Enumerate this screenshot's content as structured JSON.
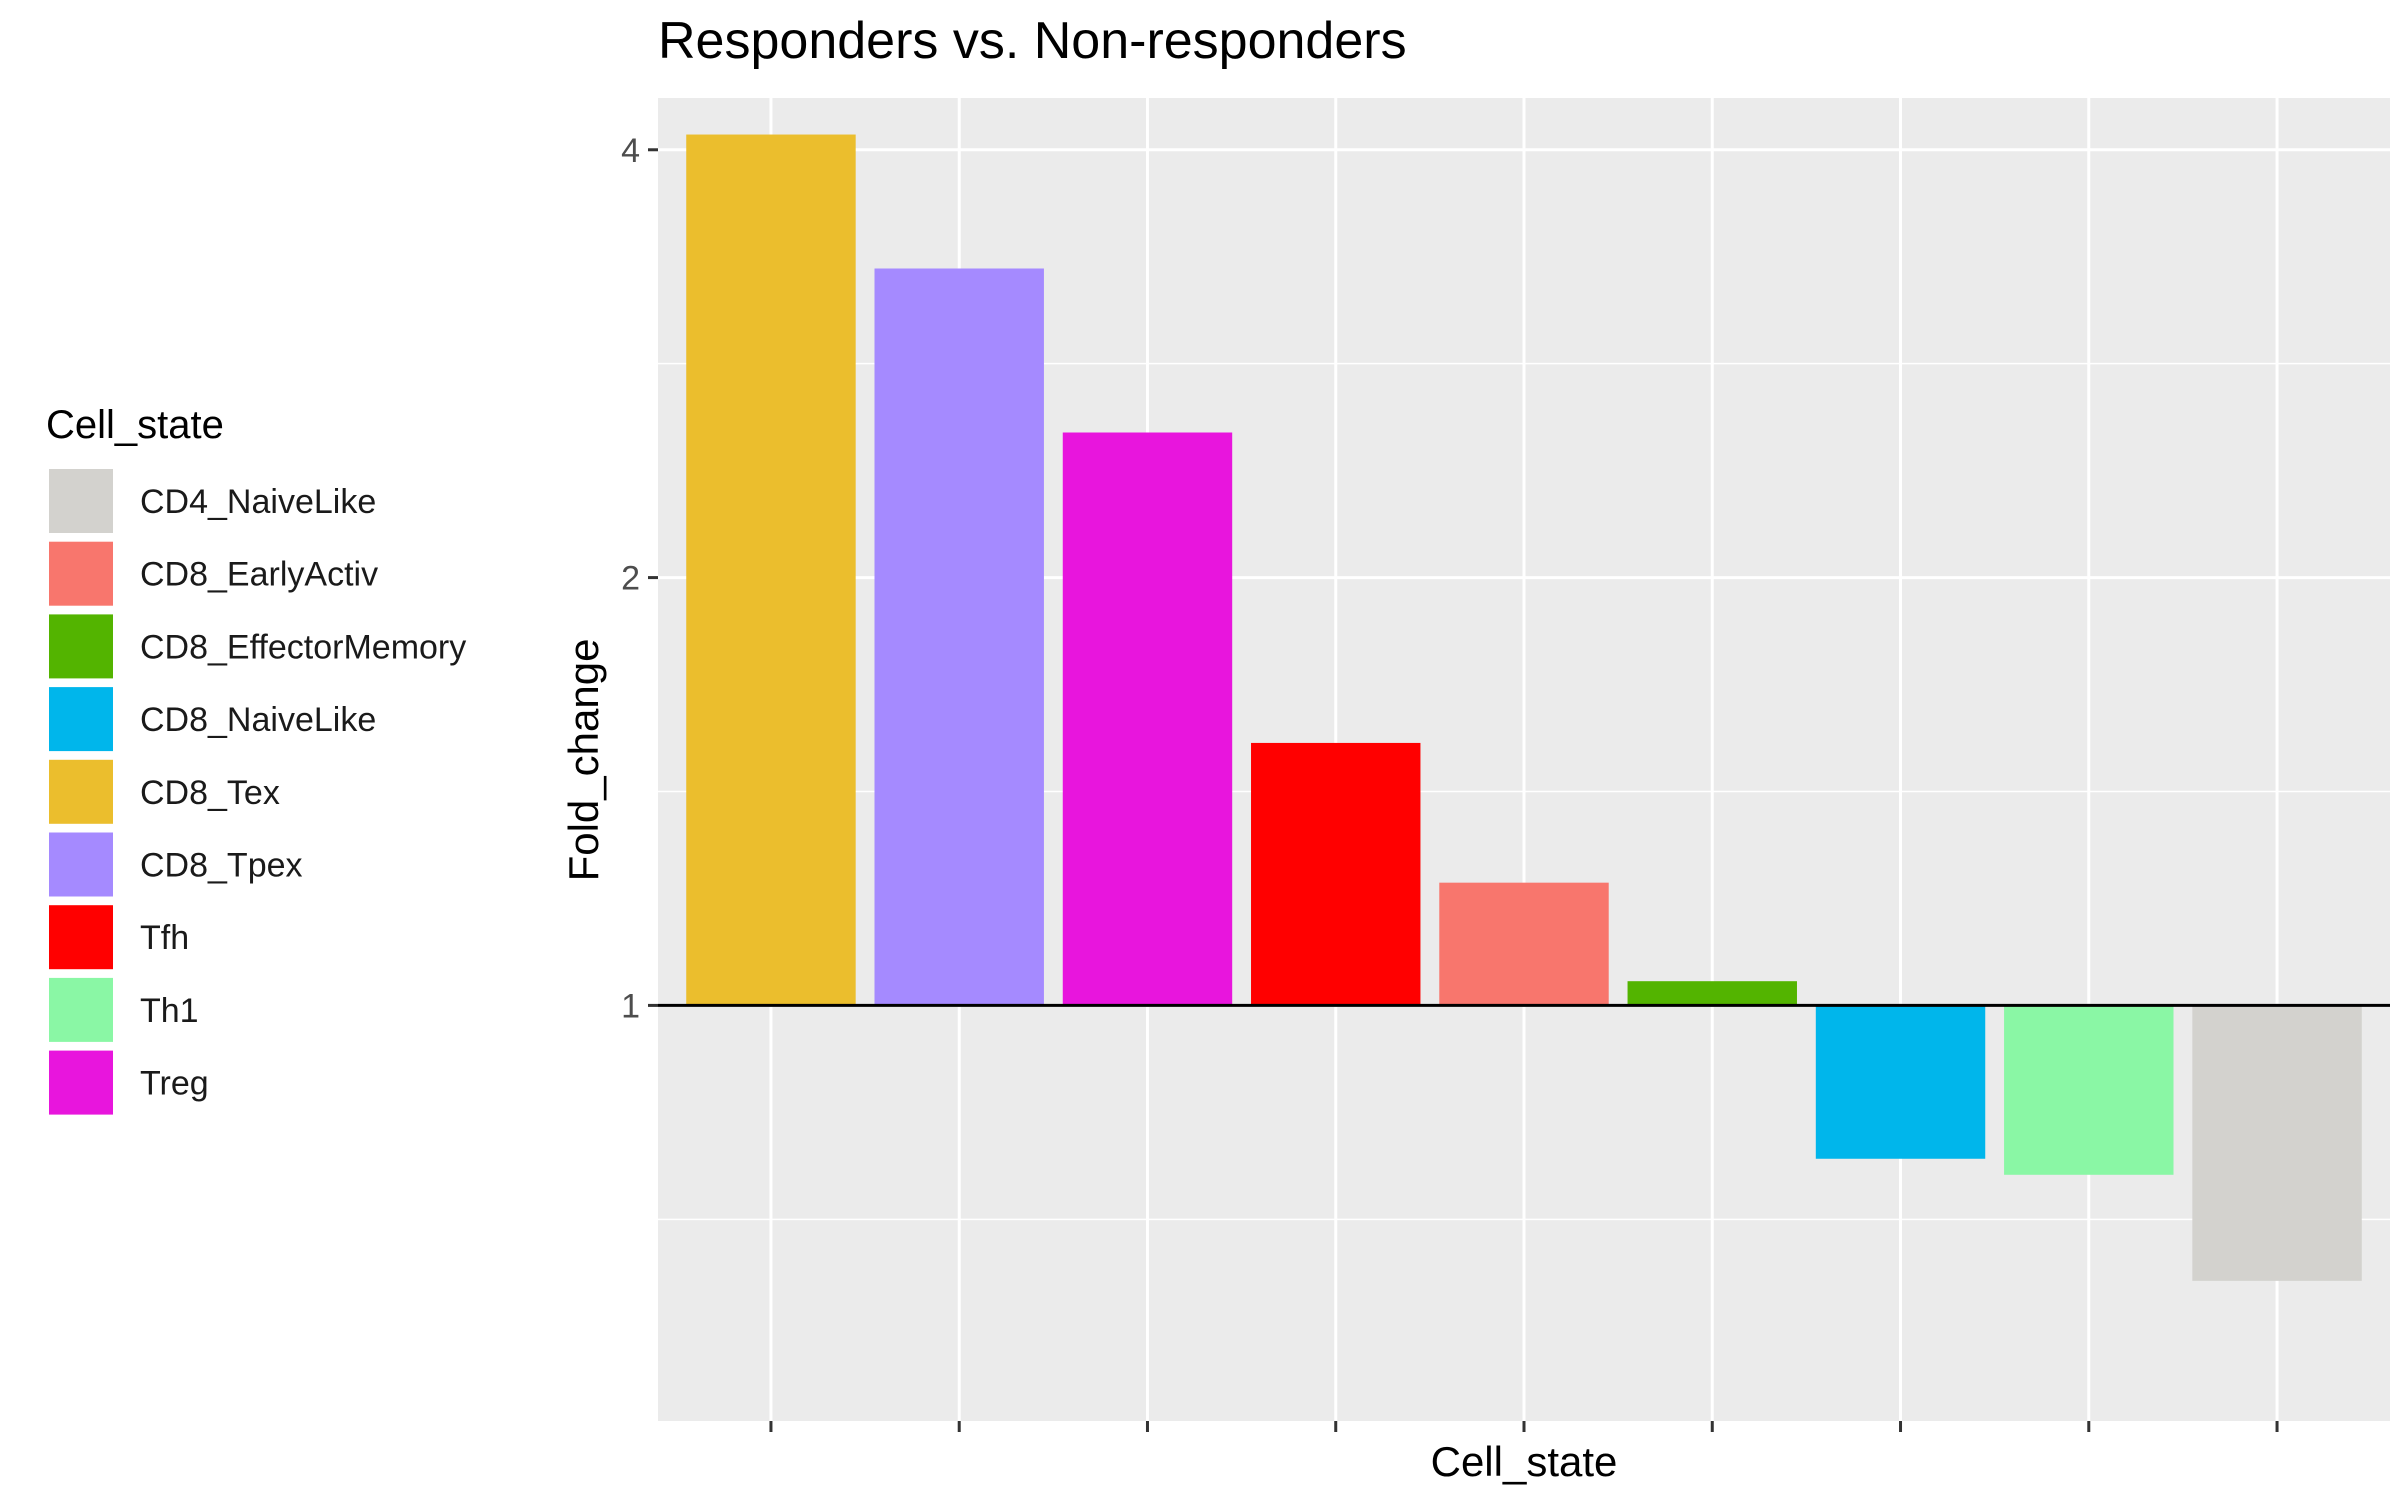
{
  "chart_data": {
    "type": "bar",
    "title": "Responders vs. Non-responders",
    "xlabel": "Cell_state",
    "ylabel": "Fold_change",
    "y_scale": "log2",
    "baseline": 1,
    "ylim": [
      0.51,
      4.35
    ],
    "y_ticks": [
      1,
      2,
      4
    ],
    "y_tick_labels": [
      "1",
      "2",
      "4"
    ],
    "grid": true,
    "panel_background": "#ebebeb",
    "legend": {
      "title": "Cell_state",
      "position": "left",
      "entries": [
        {
          "name": "CD4_NaiveLike",
          "color": "#d3d2ce"
        },
        {
          "name": "CD8_EarlyActiv",
          "color": "#f8766d"
        },
        {
          "name": "CD8_EffectorMemory",
          "color": "#53b400"
        },
        {
          "name": "CD8_NaiveLike",
          "color": "#00b6eb"
        },
        {
          "name": "CD8_Tex",
          "color": "#ebbe2d"
        },
        {
          "name": "CD8_Tpex",
          "color": "#a58aff"
        },
        {
          "name": "Tfh",
          "color": "#ff0000"
        },
        {
          "name": "Th1",
          "color": "#8af7a5"
        },
        {
          "name": "Treg",
          "color": "#e815dd"
        }
      ]
    },
    "bars": [
      {
        "category": "CD8_Tex",
        "value": 4.1,
        "color": "#ebbe2d"
      },
      {
        "category": "CD8_Tpex",
        "value": 3.3,
        "color": "#a58aff"
      },
      {
        "category": "Treg",
        "value": 2.53,
        "color": "#e815dd"
      },
      {
        "category": "Tfh",
        "value": 1.53,
        "color": "#ff0000"
      },
      {
        "category": "CD8_EarlyActiv",
        "value": 1.22,
        "color": "#f8766d"
      },
      {
        "category": "CD8_EffectorMemory",
        "value": 1.04,
        "color": "#53b400"
      },
      {
        "category": "CD8_NaiveLike",
        "value": 0.78,
        "color": "#00b6eb"
      },
      {
        "category": "Th1",
        "value": 0.76,
        "color": "#8af7a5"
      },
      {
        "category": "CD4_NaiveLike",
        "value": 0.64,
        "color": "#d3d2ce"
      }
    ]
  }
}
